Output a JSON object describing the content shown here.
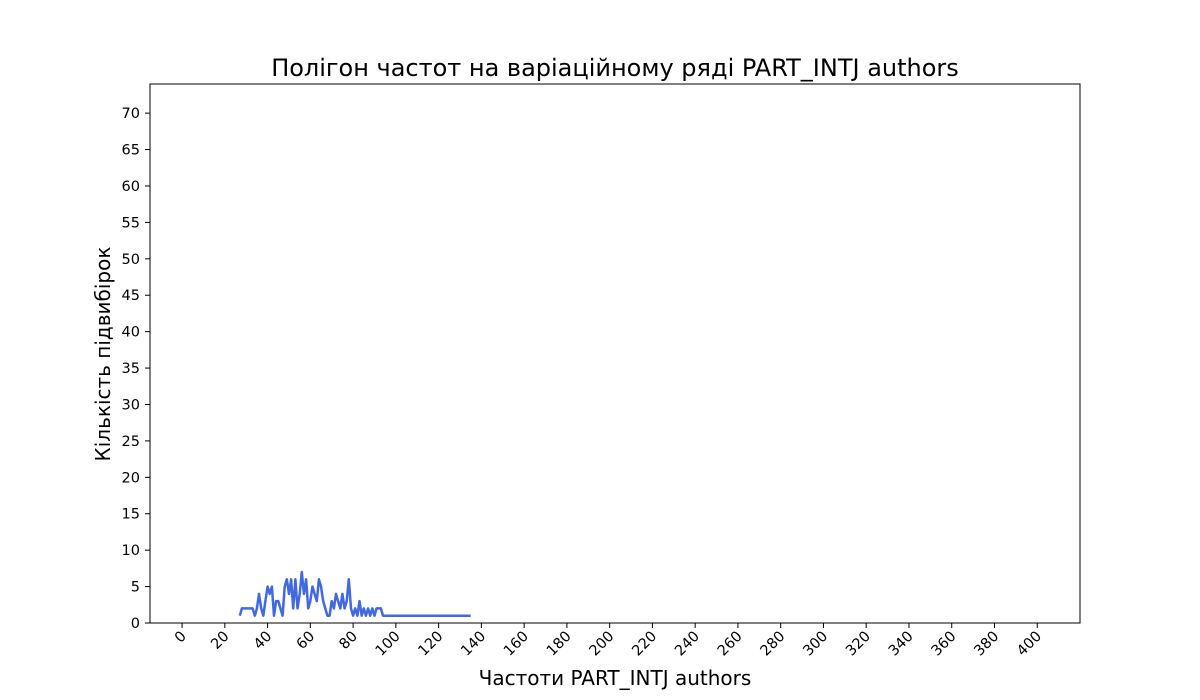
{
  "chart_data": {
    "type": "line",
    "title": "Полігон частот на варіаційному ряді PART_INTJ authors",
    "xlabel": "Частоти PART_INTJ authors",
    "ylabel": "Кількість підвибірок",
    "xlim": [
      -15,
      420
    ],
    "ylim": [
      0,
      74
    ],
    "xticks": [
      0,
      20,
      40,
      60,
      80,
      100,
      120,
      140,
      160,
      180,
      200,
      220,
      240,
      260,
      280,
      300,
      320,
      340,
      360,
      380,
      400
    ],
    "yticks": [
      0,
      5,
      10,
      15,
      20,
      25,
      30,
      35,
      40,
      45,
      50,
      55,
      60,
      65,
      70
    ],
    "grid": false,
    "line_color": "#4169e1",
    "series": [
      {
        "x": [
          27,
          28,
          29,
          30,
          31,
          32,
          33,
          34,
          35,
          36,
          37,
          38,
          39,
          40,
          41,
          42,
          43,
          44,
          45,
          46,
          47,
          48,
          49,
          50,
          51,
          52,
          53,
          54,
          55,
          56,
          57,
          58,
          59,
          60,
          61,
          62,
          63,
          64,
          65,
          66,
          67,
          68,
          69,
          70,
          71,
          72,
          73,
          74,
          75,
          76,
          77,
          78,
          79,
          80,
          81,
          82,
          83,
          84,
          85,
          86,
          87,
          88,
          89,
          90,
          91,
          92,
          93,
          94,
          95,
          96,
          97,
          98,
          99,
          100,
          101,
          102,
          103,
          104,
          105,
          110,
          115,
          120,
          125,
          130,
          135
        ],
        "values": [
          1,
          2,
          2,
          2,
          2,
          2,
          2,
          1,
          2,
          4,
          2,
          1,
          3,
          5,
          4,
          5,
          1,
          3,
          3,
          2,
          1,
          5,
          6,
          4,
          6,
          2,
          6,
          2,
          4,
          7,
          4,
          6,
          2,
          3,
          5,
          4,
          3,
          6,
          5,
          3,
          2,
          1,
          1,
          3,
          2,
          4,
          3,
          2,
          4,
          2,
          3,
          6,
          2,
          1,
          2,
          1,
          3,
          1,
          2,
          1,
          2,
          1,
          2,
          1,
          2,
          2,
          2,
          1,
          1,
          1,
          1,
          1,
          1,
          1,
          1,
          1,
          1,
          1,
          1,
          1,
          1,
          1,
          1,
          1,
          1
        ]
      }
    ]
  }
}
